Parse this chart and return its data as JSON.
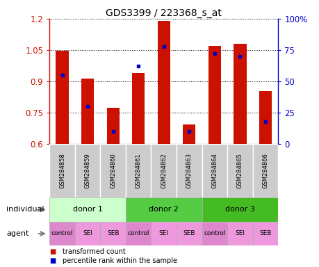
{
  "title": "GDS3399 / 223368_s_at",
  "samples": [
    "GSM284858",
    "GSM284859",
    "GSM284860",
    "GSM284861",
    "GSM284862",
    "GSM284863",
    "GSM284864",
    "GSM284865",
    "GSM284866"
  ],
  "transformed_count": [
    1.047,
    0.915,
    0.775,
    0.94,
    1.19,
    0.695,
    1.07,
    1.08,
    0.855
  ],
  "percentile_rank": [
    55,
    30,
    10,
    62,
    78,
    10,
    72,
    70,
    18
  ],
  "ymin": 0.6,
  "ymax": 1.2,
  "yticks": [
    0.6,
    0.75,
    0.9,
    1.05,
    1.2
  ],
  "ytick_labels": [
    "0.6",
    "0.75",
    "0.9",
    "1.05",
    "1.2"
  ],
  "right_yticks": [
    0,
    25,
    50,
    75,
    100
  ],
  "right_ytick_labels": [
    "0",
    "25",
    "50",
    "75",
    "100%"
  ],
  "bar_color": "#cc1100",
  "dot_color": "#0000cc",
  "individuals": [
    {
      "label": "donor 1",
      "start": 0,
      "end": 3,
      "color": "#ccffcc"
    },
    {
      "label": "donor 2",
      "start": 3,
      "end": 6,
      "color": "#55cc44"
    },
    {
      "label": "donor 3",
      "start": 6,
      "end": 9,
      "color": "#44bb22"
    }
  ],
  "agents": [
    "control",
    "SEI",
    "SEB",
    "control",
    "SEI",
    "SEB",
    "control",
    "SEI",
    "SEB"
  ],
  "agent_bg_control": "#dd88cc",
  "agent_bg_sei_seb": "#ee99dd",
  "label_individual": "individual",
  "label_agent": "agent",
  "legend_items": [
    "transformed count",
    "percentile rank within the sample"
  ],
  "sample_bg": "#cccccc"
}
